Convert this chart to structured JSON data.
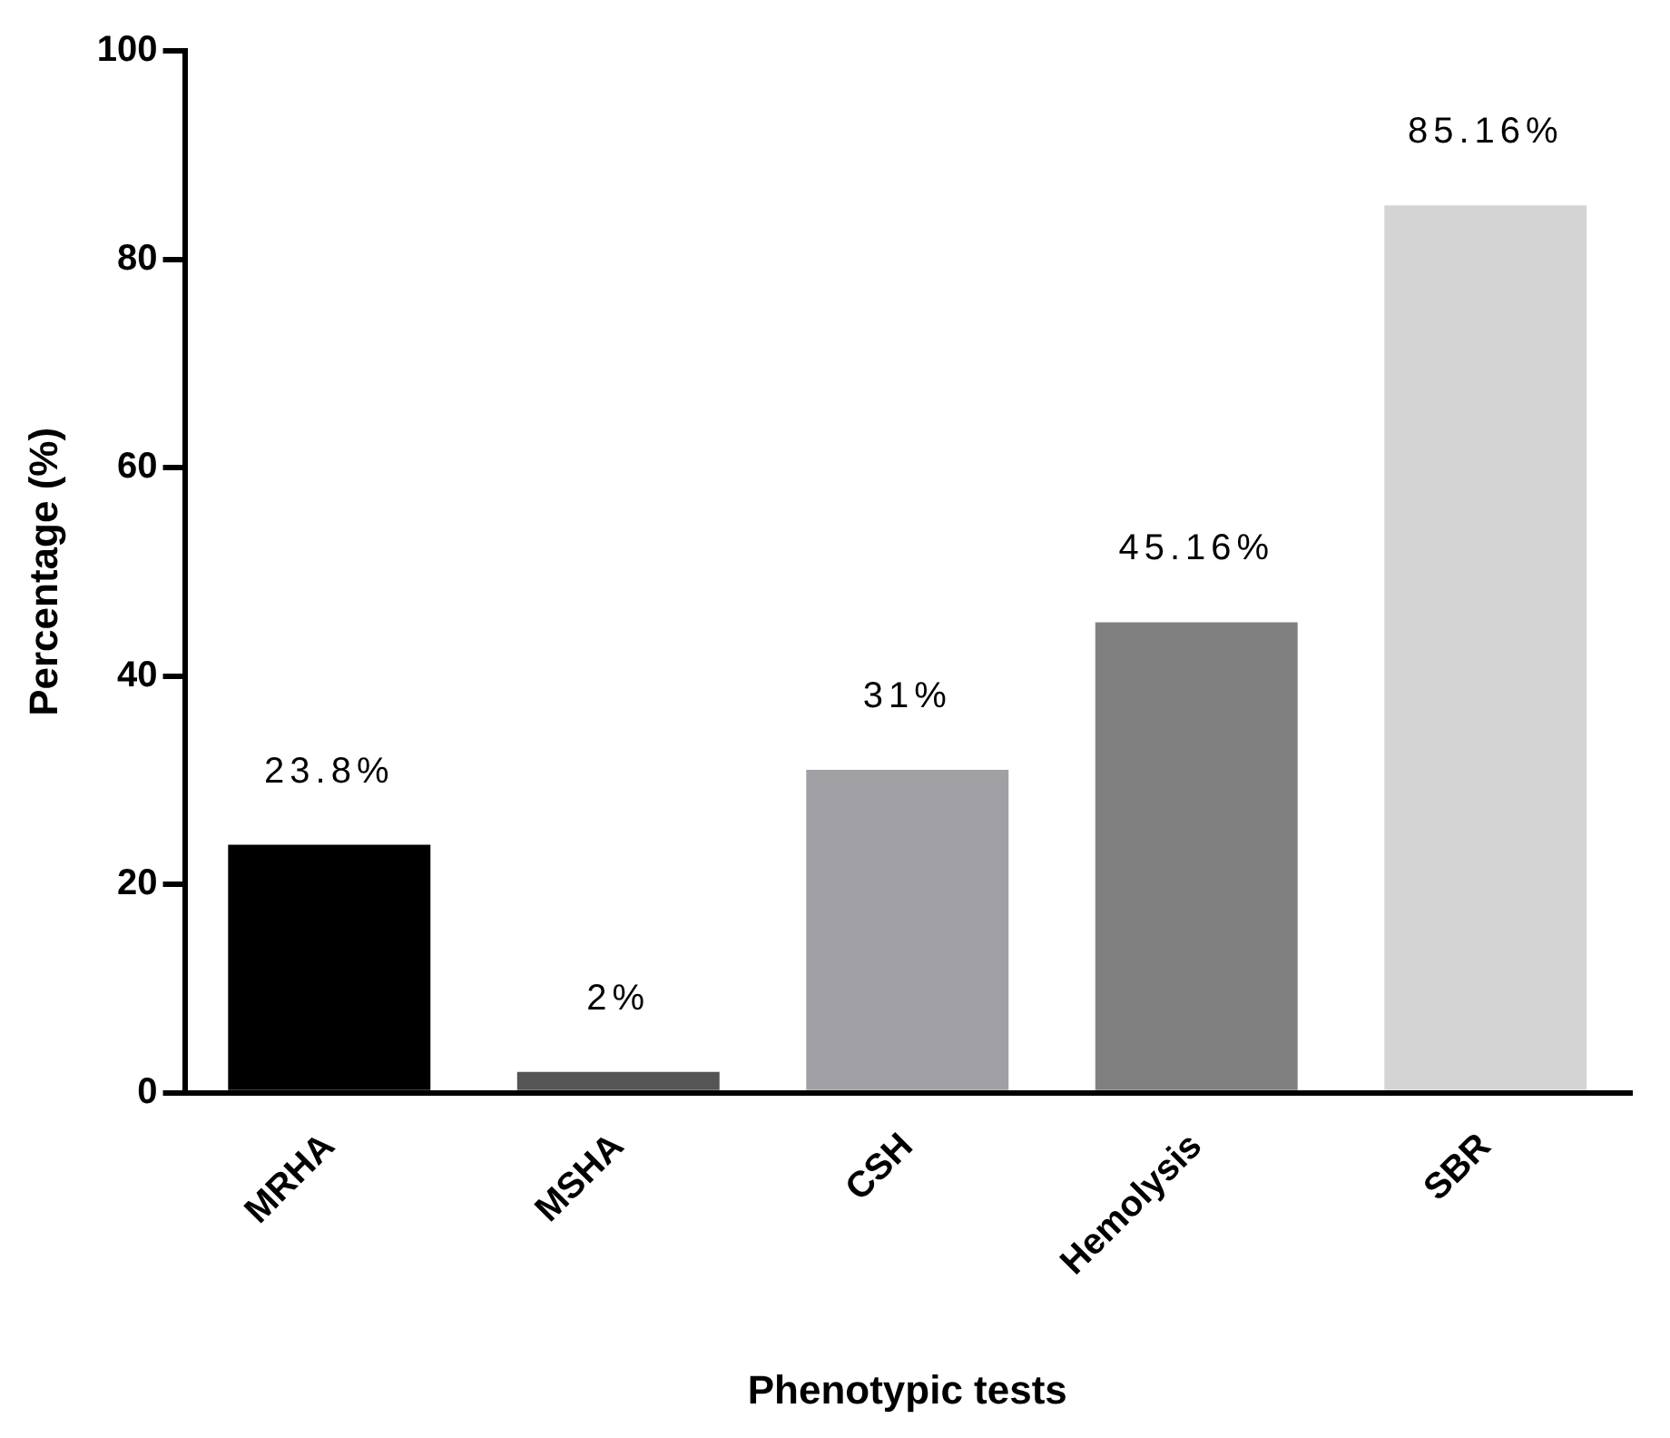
{
  "chart_data": {
    "type": "bar",
    "xlabel": "Phenotypic tests",
    "ylabel": "Percentage (%)",
    "categories": [
      "MRHA",
      "MSHA",
      "CSH",
      "Hemolysis",
      "SBR"
    ],
    "values": [
      23.8,
      2,
      31,
      45.16,
      85.16
    ],
    "colors": [
      "#000000",
      "#555555",
      "#a0a0a4",
      "#808080",
      "#d4d4d4"
    ],
    "value_labels": [
      "23.8%",
      "2%",
      "31%",
      "45.16%",
      "85.16%"
    ],
    "ylim": [
      0,
      100
    ],
    "yticks": [
      0,
      20,
      40,
      60,
      80,
      100
    ],
    "grid": false,
    "legend": false
  }
}
